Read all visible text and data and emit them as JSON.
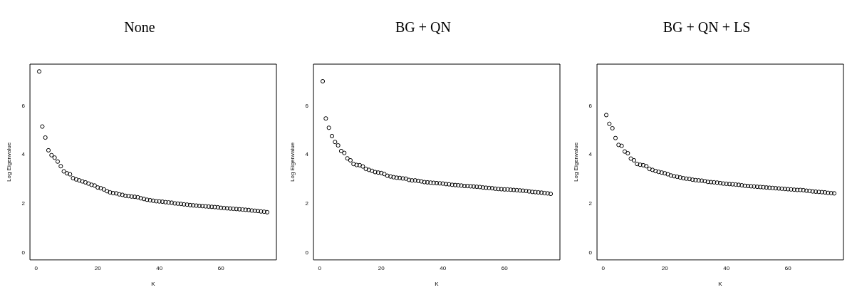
{
  "chart_data": [
    {
      "type": "scatter",
      "title": "None",
      "xlabel": "K",
      "ylabel": "Log Eigenvalue",
      "marker": "circle",
      "grid": false,
      "color": "#000000",
      "xlim": [
        -2,
        78
      ],
      "ylim": [
        -0.3,
        7.7
      ],
      "xticks": [
        0,
        20,
        40,
        60
      ],
      "yticks": [
        0,
        2,
        4,
        6
      ],
      "x": [
        1,
        2,
        3,
        4,
        5,
        6,
        7,
        8,
        9,
        10,
        11,
        12,
        13,
        14,
        15,
        16,
        17,
        18,
        19,
        20,
        21,
        22,
        23,
        24,
        25,
        26,
        27,
        28,
        29,
        30,
        31,
        32,
        33,
        34,
        35,
        36,
        37,
        38,
        39,
        40,
        41,
        42,
        43,
        44,
        45,
        46,
        47,
        48,
        49,
        50,
        51,
        52,
        53,
        54,
        55,
        56,
        57,
        58,
        59,
        60,
        61,
        62,
        63,
        64,
        65,
        66,
        67,
        68,
        69,
        70,
        71,
        72,
        73,
        74,
        75
      ],
      "values": [
        7.4,
        5.15,
        4.7,
        4.18,
        3.98,
        3.88,
        3.72,
        3.53,
        3.32,
        3.24,
        3.2,
        3.04,
        2.99,
        2.95,
        2.91,
        2.87,
        2.82,
        2.77,
        2.74,
        2.66,
        2.63,
        2.58,
        2.51,
        2.46,
        2.43,
        2.42,
        2.38,
        2.36,
        2.32,
        2.31,
        2.29,
        2.28,
        2.26,
        2.22,
        2.19,
        2.16,
        2.14,
        2.12,
        2.1,
        2.09,
        2.08,
        2.06,
        2.05,
        2.04,
        2.01,
        2.0,
        1.99,
        1.97,
        1.96,
        1.94,
        1.93,
        1.92,
        1.91,
        1.9,
        1.89,
        1.88,
        1.87,
        1.86,
        1.85,
        1.83,
        1.82,
        1.81,
        1.8,
        1.79,
        1.78,
        1.77,
        1.76,
        1.75,
        1.74,
        1.72,
        1.71,
        1.7,
        1.68,
        1.67,
        1.65
      ]
    },
    {
      "type": "scatter",
      "title": "BG + QN",
      "xlabel": "K",
      "ylabel": "Log Eigenvalue",
      "marker": "circle",
      "grid": false,
      "color": "#000000",
      "xlim": [
        -2,
        78
      ],
      "ylim": [
        -0.3,
        7.7
      ],
      "xticks": [
        0,
        20,
        40,
        60
      ],
      "yticks": [
        0,
        2,
        4,
        6
      ],
      "x": [
        1,
        2,
        3,
        4,
        5,
        6,
        7,
        8,
        9,
        10,
        11,
        12,
        13,
        14,
        15,
        16,
        17,
        18,
        19,
        20,
        21,
        22,
        23,
        24,
        25,
        26,
        27,
        28,
        29,
        30,
        31,
        32,
        33,
        34,
        35,
        36,
        37,
        38,
        39,
        40,
        41,
        42,
        43,
        44,
        45,
        46,
        47,
        48,
        49,
        50,
        51,
        52,
        53,
        54,
        55,
        56,
        57,
        58,
        59,
        60,
        61,
        62,
        63,
        64,
        65,
        66,
        67,
        68,
        69,
        70,
        71,
        72,
        73,
        74,
        75
      ],
      "values": [
        7.0,
        5.48,
        5.1,
        4.76,
        4.52,
        4.38,
        4.15,
        4.07,
        3.85,
        3.77,
        3.62,
        3.58,
        3.57,
        3.52,
        3.42,
        3.38,
        3.34,
        3.29,
        3.27,
        3.25,
        3.21,
        3.14,
        3.11,
        3.08,
        3.06,
        3.05,
        3.03,
        3.02,
        2.97,
        2.95,
        2.95,
        2.93,
        2.91,
        2.88,
        2.87,
        2.86,
        2.85,
        2.84,
        2.83,
        2.82,
        2.8,
        2.79,
        2.77,
        2.76,
        2.75,
        2.74,
        2.72,
        2.72,
        2.71,
        2.7,
        2.69,
        2.68,
        2.66,
        2.65,
        2.64,
        2.63,
        2.61,
        2.6,
        2.59,
        2.58,
        2.58,
        2.57,
        2.56,
        2.55,
        2.54,
        2.53,
        2.52,
        2.5,
        2.48,
        2.47,
        2.46,
        2.45,
        2.43,
        2.42,
        2.4
      ]
    },
    {
      "type": "scatter",
      "title": "BG + QN + LS",
      "xlabel": "K",
      "ylabel": "Log Eigenvalue",
      "marker": "circle",
      "grid": false,
      "color": "#000000",
      "xlim": [
        -2,
        78
      ],
      "ylim": [
        -0.3,
        7.7
      ],
      "xticks": [
        0,
        20,
        40,
        60
      ],
      "yticks": [
        0,
        2,
        4,
        6
      ],
      "x": [
        1,
        2,
        3,
        4,
        5,
        6,
        7,
        8,
        9,
        10,
        11,
        12,
        13,
        14,
        15,
        16,
        17,
        18,
        19,
        20,
        21,
        22,
        23,
        24,
        25,
        26,
        27,
        28,
        29,
        30,
        31,
        32,
        33,
        34,
        35,
        36,
        37,
        38,
        39,
        40,
        41,
        42,
        43,
        44,
        45,
        46,
        47,
        48,
        49,
        50,
        51,
        52,
        53,
        54,
        55,
        56,
        57,
        58,
        59,
        60,
        61,
        62,
        63,
        64,
        65,
        66,
        67,
        68,
        69,
        70,
        71,
        72,
        73,
        74,
        75
      ],
      "values": [
        5.62,
        5.26,
        5.08,
        4.68,
        4.4,
        4.36,
        4.13,
        4.06,
        3.84,
        3.77,
        3.62,
        3.59,
        3.57,
        3.53,
        3.42,
        3.38,
        3.33,
        3.3,
        3.27,
        3.24,
        3.2,
        3.15,
        3.12,
        3.1,
        3.07,
        3.04,
        3.02,
        3.01,
        2.98,
        2.96,
        2.95,
        2.94,
        2.92,
        2.89,
        2.88,
        2.87,
        2.86,
        2.84,
        2.82,
        2.81,
        2.8,
        2.79,
        2.78,
        2.77,
        2.75,
        2.73,
        2.72,
        2.71,
        2.7,
        2.69,
        2.68,
        2.67,
        2.66,
        2.65,
        2.64,
        2.63,
        2.62,
        2.61,
        2.6,
        2.59,
        2.58,
        2.57,
        2.56,
        2.56,
        2.55,
        2.53,
        2.52,
        2.5,
        2.49,
        2.48,
        2.47,
        2.46,
        2.44,
        2.43,
        2.42
      ]
    }
  ]
}
